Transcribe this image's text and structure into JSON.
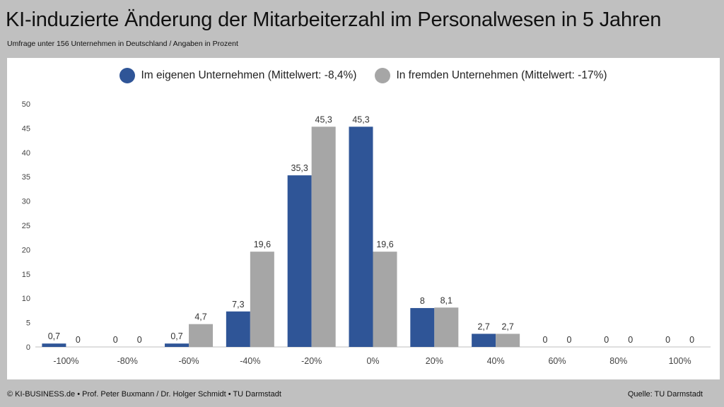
{
  "header": {
    "title": "KI-induzierte Änderung der Mitarbeiterzahl im Personalwesen in 5 Jahren",
    "subtitle": "Umfrage unter 156 Unternehmen in Deutschland / Angaben in Prozent"
  },
  "footer": {
    "left": "© KI-BUSINESS.de • Prof. Peter Buxmann / Dr. Holger Schmidt • TU Darmstadt",
    "right": "Quelle: TU Darmstadt"
  },
  "chart_data": {
    "type": "bar",
    "categories": [
      "-100%",
      "-80%",
      "-60%",
      "-40%",
      "-20%",
      "0%",
      "20%",
      "40%",
      "60%",
      "80%",
      "100%"
    ],
    "series": [
      {
        "name": "Im eigenen Unternehmen (Mittelwert: -8,4%)",
        "color": "#2f5597",
        "values": [
          0.7,
          0,
          0.7,
          7.3,
          35.3,
          45.3,
          8,
          2.7,
          0,
          0,
          0
        ],
        "labels": [
          "0,7",
          "0",
          "0,7",
          "7,3",
          "35,3",
          "45,3",
          "8",
          "2,7",
          "0",
          "0",
          "0"
        ]
      },
      {
        "name": "In fremden Unternehmen (Mittelwert: -17%)",
        "color": "#a6a6a6",
        "values": [
          0,
          0,
          4.7,
          19.6,
          45.3,
          19.6,
          8.1,
          2.7,
          0,
          0,
          0
        ],
        "labels": [
          "0",
          "0",
          "4,7",
          "19,6",
          "45,3",
          "19,6",
          "8,1",
          "2,7",
          "0",
          "0",
          "0"
        ]
      }
    ],
    "yticks": [
      "0",
      "5",
      "10",
      "15",
      "20",
      "25",
      "30",
      "35",
      "40",
      "45",
      "50"
    ],
    "ylim": [
      0,
      50
    ],
    "grid": false,
    "legend_position": "top-center"
  }
}
